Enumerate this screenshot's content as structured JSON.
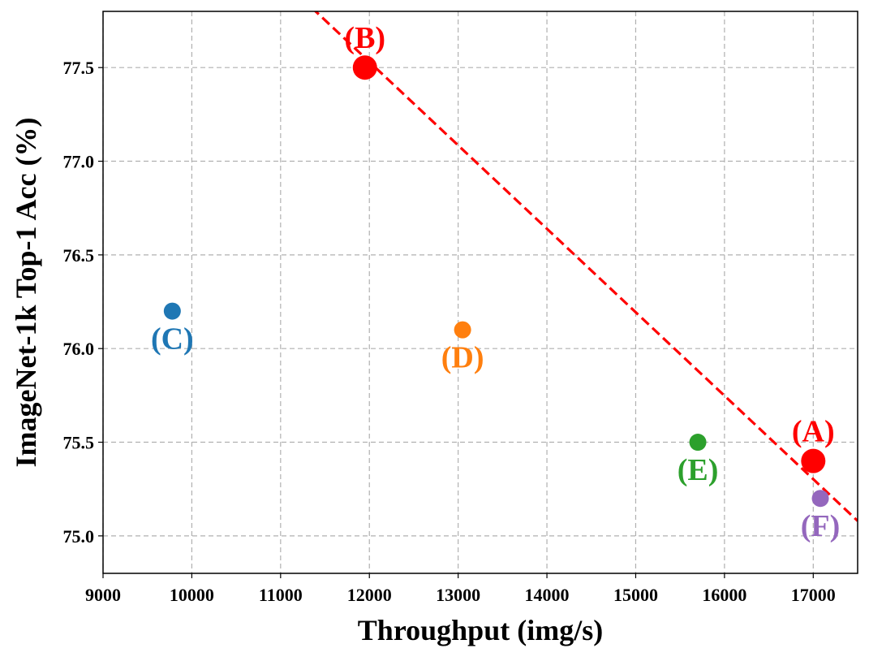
{
  "chart_data": {
    "type": "scatter",
    "title": "",
    "xlabel": "Throughput (img/s)",
    "ylabel": "ImageNet-1k Top-1 Acc (%)",
    "xlim": [
      9000,
      17500
    ],
    "ylim": [
      74.8,
      77.8
    ],
    "xticks": [
      9000,
      10000,
      11000,
      12000,
      13000,
      14000,
      15000,
      16000,
      17000
    ],
    "yticks": [
      75.0,
      75.5,
      76.0,
      76.5,
      77.0,
      77.5
    ],
    "grid": true,
    "points": [
      {
        "label": "(A)",
        "x": 17000,
        "y": 75.4,
        "color": "#ff0000",
        "size": "large",
        "label_pos": "above"
      },
      {
        "label": "(B)",
        "x": 11950,
        "y": 77.5,
        "color": "#ff0000",
        "size": "large",
        "label_pos": "above"
      },
      {
        "label": "(C)",
        "x": 9780,
        "y": 76.2,
        "color": "#1f77b4",
        "size": "small",
        "label_pos": "below"
      },
      {
        "label": "(D)",
        "x": 13050,
        "y": 76.1,
        "color": "#ff7f0e",
        "size": "small",
        "label_pos": "below"
      },
      {
        "label": "(E)",
        "x": 15700,
        "y": 75.5,
        "color": "#2ca02c",
        "size": "small",
        "label_pos": "below"
      },
      {
        "label": "(F)",
        "x": 17080,
        "y": 75.2,
        "color": "#9467bd",
        "size": "small",
        "label_pos": "below"
      }
    ],
    "trend_line": {
      "x": [
        11350,
        17500
      ],
      "y": [
        77.82,
        75.08
      ],
      "color": "#ff0000",
      "style": "dashed"
    }
  }
}
